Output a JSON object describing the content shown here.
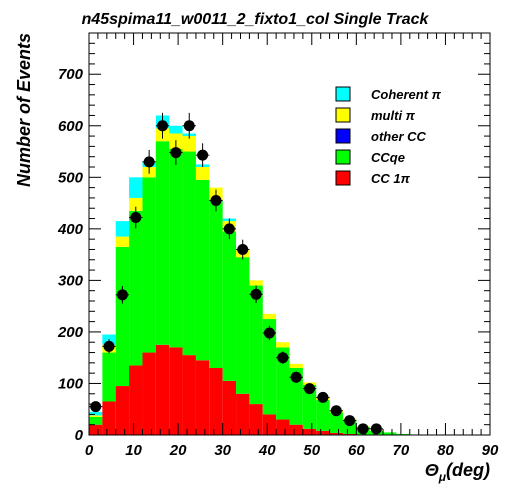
{
  "chart_data": {
    "type": "bar",
    "title": "n45spima11_w0011_2_fixto1_col Single Track",
    "xlabel": "Θ",
    "xlabel_sub": "μ",
    "xlabel_unit": "(deg)",
    "ylabel": "Number of Events",
    "xlim": [
      0,
      90
    ],
    "ylim": [
      0,
      780
    ],
    "xticks": [
      0,
      10,
      20,
      30,
      40,
      50,
      60,
      70,
      80,
      90
    ],
    "yticks": [
      0,
      100,
      200,
      300,
      400,
      500,
      600,
      700
    ],
    "bin_width": 3,
    "bin_edges_start": 0,
    "legend_position": "top-right",
    "stacked": true,
    "series": [
      {
        "name": "CC 1π",
        "color": "#ff0000",
        "values": [
          20,
          65,
          95,
          135,
          160,
          175,
          170,
          155,
          145,
          130,
          105,
          80,
          60,
          40,
          30,
          20,
          12,
          8,
          4,
          2,
          1,
          0,
          0,
          0,
          0,
          0,
          0,
          0,
          0,
          0
        ]
      },
      {
        "name": "CCqe",
        "color": "#00ff00",
        "values": [
          15,
          95,
          270,
          300,
          340,
          395,
          385,
          395,
          350,
          325,
          290,
          265,
          230,
          185,
          140,
          110,
          85,
          60,
          40,
          28,
          15,
          8,
          5,
          2,
          1,
          0,
          0,
          0,
          0,
          0
        ]
      },
      {
        "name": "other CC",
        "color": "#0000ff",
        "values": [
          0,
          0,
          0,
          0,
          0,
          0,
          0,
          0,
          0,
          0,
          0,
          0,
          0,
          0,
          0,
          0,
          0,
          0,
          0,
          0,
          0,
          0,
          0,
          0,
          0,
          0,
          0,
          0,
          0,
          0
        ]
      },
      {
        "name": "multi π",
        "color": "#ffff00",
        "values": [
          3,
          15,
          20,
          25,
          20,
          25,
          30,
          30,
          25,
          25,
          20,
          15,
          10,
          10,
          10,
          8,
          5,
          4,
          3,
          2,
          1,
          1,
          0,
          0,
          0,
          0,
          0,
          0,
          0,
          0
        ]
      },
      {
        "name": "Coherent π",
        "color": "#00ffff",
        "values": [
          7,
          20,
          30,
          40,
          10,
          25,
          15,
          5,
          5,
          0,
          5,
          0,
          0,
          0,
          0,
          0,
          0,
          0,
          0,
          0,
          0,
          0,
          0,
          0,
          0,
          0,
          0,
          0,
          0,
          0
        ]
      }
    ],
    "data_points": {
      "x": [
        1.5,
        4.5,
        7.5,
        10.5,
        13.5,
        16.5,
        19.5,
        22.5,
        25.5,
        28.5,
        31.5,
        34.5,
        37.5,
        40.5,
        43.5,
        46.5,
        49.5,
        52.5,
        55.5
      ],
      "y": [
        55,
        172,
        272,
        422,
        530,
        600,
        548,
        600,
        543,
        455,
        400,
        360,
        273,
        198,
        150,
        112,
        90,
        73,
        47
      ],
      "yerr": [
        8,
        14,
        17,
        21,
        23,
        25,
        24,
        25,
        23,
        21,
        20,
        19,
        17,
        14,
        12,
        11,
        10,
        9,
        7
      ]
    },
    "data_points_tail": {
      "x": [
        58.5,
        61.5,
        64.5
      ],
      "y": [
        28,
        12,
        12
      ]
    },
    "legend": [
      {
        "label": "Coherent π",
        "color": "#00ffff"
      },
      {
        "label": "multi π",
        "color": "#ffff00"
      },
      {
        "label": "other CC",
        "color": "#0000ff"
      },
      {
        "label": "CCqe",
        "color": "#00ff00"
      },
      {
        "label": "CC 1π",
        "color": "#ff0000"
      }
    ]
  }
}
